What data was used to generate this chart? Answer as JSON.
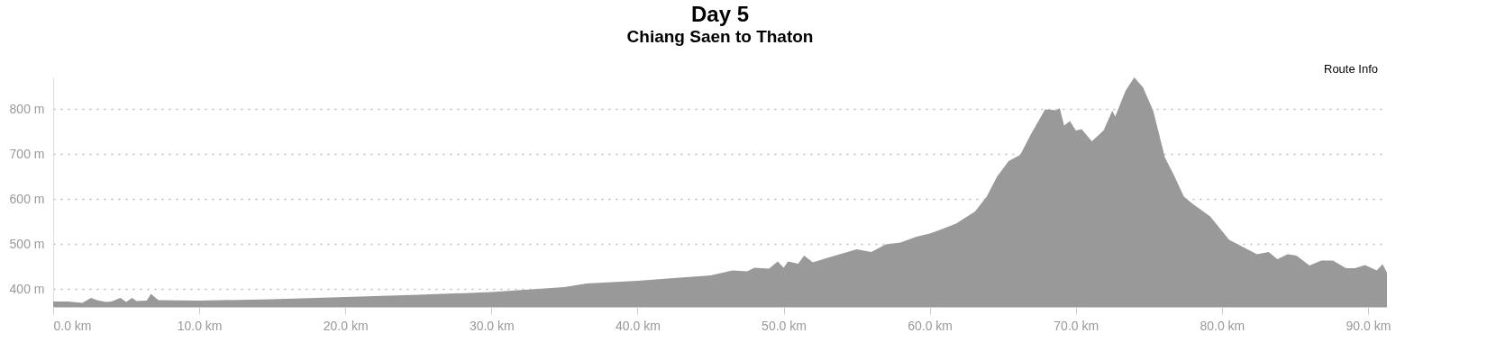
{
  "chart_data": {
    "type": "area",
    "title": "Day 5",
    "subtitle": "Chiang Saen to Thaton",
    "annotations": [
      "Route Info"
    ],
    "x": [
      0,
      1,
      2,
      2.6,
      3,
      3.6,
      4,
      4.6,
      5,
      5.4,
      5.7,
      6.4,
      6.7,
      7.2,
      10,
      15,
      20,
      25,
      30,
      35,
      36.5,
      40,
      45,
      46.5,
      47.5,
      48,
      49,
      49.6,
      50,
      50.3,
      51,
      51.4,
      52,
      53,
      55,
      56,
      57,
      58,
      59,
      60,
      60.6,
      61.8,
      63.1,
      63.9,
      64.6,
      65.4,
      66.2,
      66.9,
      67.9,
      68.7,
      68.9,
      69.2,
      69.6,
      70.0,
      70.4,
      71.1,
      71.9,
      72.5,
      72.7,
      73.4,
      74.0,
      74.6,
      75.3,
      76.1,
      76.7,
      77.4,
      78.0,
      79.2,
      80.5,
      82.4,
      83.2,
      83.8,
      84.5,
      85.1,
      86.0,
      86.8,
      87.6,
      88.5,
      89.1,
      89.8,
      90.6,
      91.0,
      91.3
    ],
    "series": [
      {
        "color": "#999999",
        "values": [
          372,
          372,
          369,
          380,
          375,
          371,
          372,
          380,
          371,
          380,
          373,
          374,
          389,
          375,
          374,
          377,
          382,
          387,
          393,
          404,
          412,
          418,
          430,
          441,
          439,
          447,
          445,
          461,
          447,
          461,
          456,
          474,
          459,
          469,
          488,
          482,
          499,
          503,
          515,
          523,
          530,
          545,
          572,
          605,
          649,
          684,
          698,
          742,
          799,
          797,
          802,
          763,
          773,
          752,
          755,
          728,
          752,
          796,
          783,
          840,
          870,
          848,
          796,
          692,
          654,
          605,
          589,
          561,
          509,
          477,
          482,
          466,
          477,
          474,
          452,
          463,
          463,
          446,
          446,
          453,
          441,
          455,
          436
        ]
      }
    ],
    "xlim": [
      0,
      91.3
    ],
    "ylim": [
      360,
      870
    ],
    "xticks": [
      {
        "value": 0,
        "label": "0.0 km"
      },
      {
        "value": 10,
        "label": "10.0 km"
      },
      {
        "value": 20,
        "label": "20.0 km"
      },
      {
        "value": 30,
        "label": "30.0 km"
      },
      {
        "value": 40,
        "label": "40.0 km"
      },
      {
        "value": 50,
        "label": "50.0 km"
      },
      {
        "value": 60,
        "label": "60.0 km"
      },
      {
        "value": 70,
        "label": "70.0 km"
      },
      {
        "value": 80,
        "label": "80.0 km"
      },
      {
        "value": 90,
        "label": "90.0 km"
      }
    ],
    "yticks": [
      {
        "value": 400,
        "label": "400 m"
      },
      {
        "value": 500,
        "label": "500 m"
      },
      {
        "value": 600,
        "label": "600 m"
      },
      {
        "value": 700,
        "label": "700 m"
      },
      {
        "value": 800,
        "label": "800 m"
      }
    ],
    "grid": "y"
  }
}
